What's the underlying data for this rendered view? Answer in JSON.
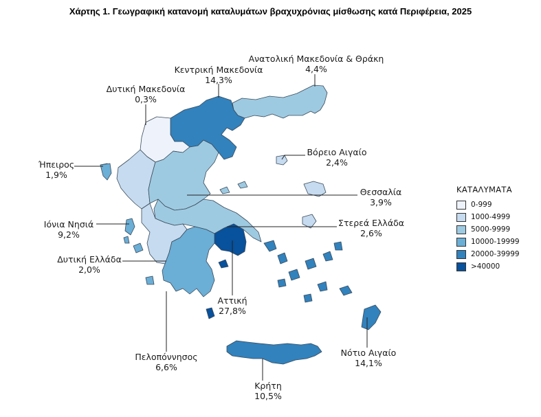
{
  "title": "Χάρτης 1. Γεωγραφική κατανομή καταλυμάτων βραχυχρόνιας μίσθωσης κατά Περιφέρεια, 2025",
  "legend": {
    "title": "ΚΑΤΑΛΥΜΑΤΑ",
    "classes": [
      {
        "label": "0-999",
        "color": "#eef3fb"
      },
      {
        "label": "1000-4999",
        "color": "#c6dbef"
      },
      {
        "label": "5000-9999",
        "color": "#9ecae1"
      },
      {
        "label": "10000-19999",
        "color": "#6baed6"
      },
      {
        "label": "20000-39999",
        "color": "#3182bd"
      },
      {
        "label": ">40000",
        "color": "#08519c"
      }
    ]
  },
  "regions": [
    {
      "name": "Ανατολική Μακεδονία & Θράκη",
      "share": "4,4%",
      "class": 2
    },
    {
      "name": "Κεντρική Μακεδονία",
      "share": "14,3%",
      "class": 4
    },
    {
      "name": "Δυτική Μακεδονία",
      "share": "0,3%",
      "class": 0
    },
    {
      "name": "Βόρειο Αιγαίο",
      "share": "2,4%",
      "class": 1
    },
    {
      "name": "Ήπειρος",
      "share": "1,9%",
      "class": 1
    },
    {
      "name": "Θεσσαλία",
      "share": "3,9%",
      "class": 2
    },
    {
      "name": "Ιόνια Νησιά",
      "share": "9,2%",
      "class": 3
    },
    {
      "name": "Στερεά Ελλάδα",
      "share": "2,6%",
      "class": 2
    },
    {
      "name": "Δυτική Ελλάδα",
      "share": "2,0%",
      "class": 1
    },
    {
      "name": "Αττική",
      "share": "27,8%",
      "class": 5
    },
    {
      "name": "Πελοπόννησος",
      "share": "6,6%",
      "class": 3
    },
    {
      "name": "Νότιο Αιγαίο",
      "share": "14,1%",
      "class": 4
    },
    {
      "name": "Κρήτη",
      "share": "10,5%",
      "class": 4
    }
  ]
}
